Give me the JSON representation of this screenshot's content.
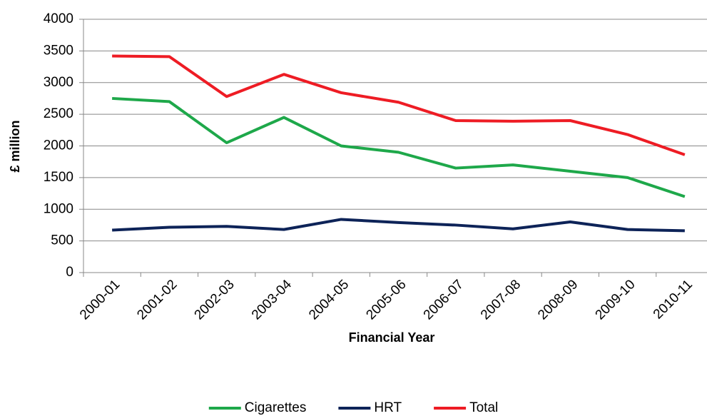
{
  "chart_data": {
    "type": "line",
    "x_label": "Financial Year",
    "y_label": "£ million",
    "categories": [
      "2000-01",
      "2001-02",
      "2002-03",
      "2003-04",
      "2004-05",
      "2005-06",
      "2006-07",
      "2007-08",
      "2008-09",
      "2009-10",
      "2010-11"
    ],
    "series": [
      {
        "name": "Cigarettes",
        "color": "#1ea84a",
        "values": [
          2750,
          2700,
          2050,
          2450,
          2000,
          1900,
          1650,
          1700,
          1600,
          1500,
          1200
        ]
      },
      {
        "name": "HRT",
        "color": "#0d2358",
        "values": [
          670,
          715,
          730,
          680,
          840,
          790,
          750,
          690,
          800,
          680,
          660
        ]
      },
      {
        "name": "Total",
        "color": "#ee1c24",
        "values": [
          3420,
          3410,
          2780,
          3130,
          2840,
          2690,
          2400,
          2390,
          2400,
          2180,
          1860
        ]
      }
    ],
    "ylim": [
      0,
      4000
    ],
    "yticks": [
      0,
      500,
      1000,
      1500,
      2000,
      2500,
      3000,
      3500,
      4000
    ],
    "grid": true,
    "legend": "bottom"
  }
}
